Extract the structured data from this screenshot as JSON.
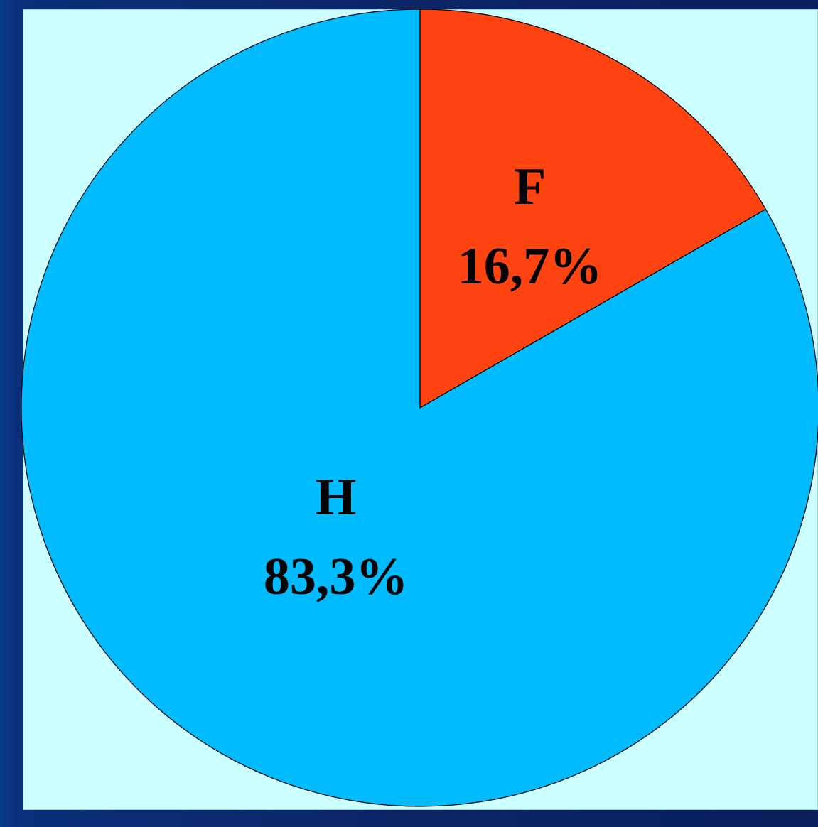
{
  "chart_data": {
    "type": "pie",
    "title": "",
    "start_angle": "top",
    "direction": "clockwise",
    "slices": [
      {
        "label": "F",
        "value": 16.7,
        "value_label": "16,7%",
        "color": "#ff4411"
      },
      {
        "label": "H",
        "value": 83.3,
        "value_label": "83,3%",
        "color": "#00bbff"
      }
    ]
  },
  "colors": {
    "panel_background": "#ccffff",
    "slide_background": "#0b2566",
    "slice_outline": "#000000"
  }
}
